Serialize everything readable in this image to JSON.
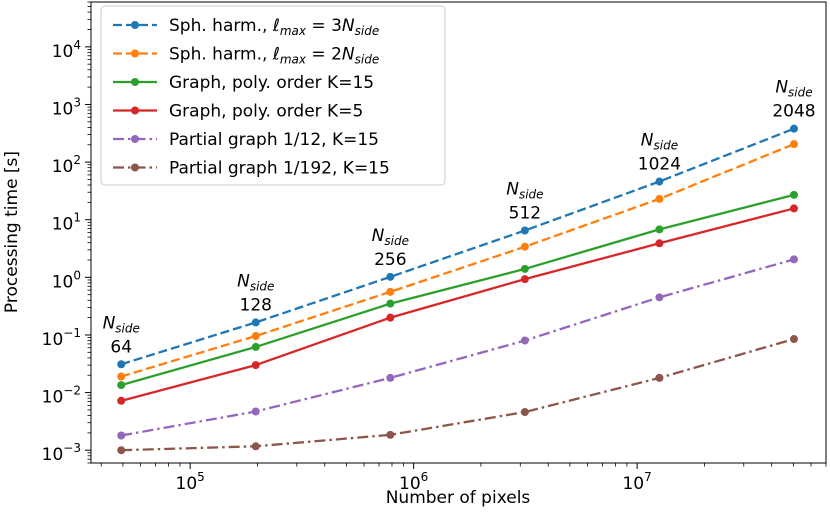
{
  "chart_data": {
    "type": "line",
    "xscale": "log",
    "yscale": "log",
    "xlabel": "Number of pixels",
    "ylabel": "Processing time [s]",
    "xlim": [
      36000,
      70000000
    ],
    "ylim": [
      0.0006,
      60000
    ],
    "x_ticks": [
      {
        "value": 100000,
        "base": "10",
        "exp": "5"
      },
      {
        "value": 1000000,
        "base": "10",
        "exp": "6"
      },
      {
        "value": 10000000,
        "base": "10",
        "exp": "7"
      }
    ],
    "y_ticks": [
      {
        "value": 0.001,
        "base": "10",
        "exp": "−3"
      },
      {
        "value": 0.01,
        "base": "10",
        "exp": "−2"
      },
      {
        "value": 0.1,
        "base": "10",
        "exp": "−1"
      },
      {
        "value": 1,
        "base": "10",
        "exp": "0"
      },
      {
        "value": 10,
        "base": "10",
        "exp": "1"
      },
      {
        "value": 100,
        "base": "10",
        "exp": "2"
      },
      {
        "value": 1000,
        "base": "10",
        "exp": "3"
      },
      {
        "value": 10000,
        "base": "10",
        "exp": "4"
      }
    ],
    "x": [
      49152,
      196608,
      786432,
      3145728,
      12582912,
      50331648
    ],
    "legend_location": "upper-left",
    "series": [
      {
        "name": "Sph. harm., ℓmax = 3Nside",
        "legend_main": "Sph. harm., ",
        "legend_ell": "ℓ",
        "legend_ell_sub": "max",
        "legend_eq": " = 3",
        "legend_n": "N",
        "legend_n_sub": "side",
        "color": "#1f77b4",
        "linestyle": "dashed",
        "values": [
          0.031,
          0.165,
          1.02,
          6.5,
          46,
          380
        ]
      },
      {
        "name": "Sph. harm., ℓmax = 2Nside",
        "legend_main": "Sph. harm., ",
        "legend_ell": "ℓ",
        "legend_ell_sub": "max",
        "legend_eq": " = 2",
        "legend_n": "N",
        "legend_n_sub": "side",
        "color": "#ff7f0e",
        "linestyle": "dashed",
        "values": [
          0.019,
          0.096,
          0.56,
          3.4,
          23,
          205
        ]
      },
      {
        "name": "Graph, poly. order K=15",
        "legend_main": "Graph, poly. order K=15",
        "color": "#2ca02c",
        "linestyle": "solid",
        "values": [
          0.0135,
          0.062,
          0.35,
          1.4,
          6.8,
          27
        ]
      },
      {
        "name": "Graph, poly. order K=5",
        "legend_main": "Graph, poly. order K=5",
        "color": "#d62728",
        "linestyle": "solid",
        "values": [
          0.0072,
          0.03,
          0.2,
          0.93,
          3.9,
          15.7
        ]
      },
      {
        "name": "Partial graph 1/12, K=15",
        "legend_main": "Partial graph 1/12, K=15",
        "color": "#9467bd",
        "linestyle": "dashdot",
        "values": [
          0.0018,
          0.0047,
          0.018,
          0.08,
          0.45,
          2.05
        ]
      },
      {
        "name": "Partial graph 1/192, K=15",
        "legend_main": "Partial graph 1/192, K=15",
        "color": "#8c564b",
        "linestyle": "dashdot",
        "values": [
          0.001,
          0.00117,
          0.00185,
          0.0046,
          0.018,
          0.085
        ]
      }
    ],
    "annotations": [
      {
        "n": "N",
        "sub": "side",
        "value": "64"
      },
      {
        "n": "N",
        "sub": "side",
        "value": "128"
      },
      {
        "n": "N",
        "sub": "side",
        "value": "256"
      },
      {
        "n": "N",
        "sub": "side",
        "value": "512"
      },
      {
        "n": "N",
        "sub": "side",
        "value": "1024"
      },
      {
        "n": "N",
        "sub": "side",
        "value": "2048"
      }
    ]
  }
}
